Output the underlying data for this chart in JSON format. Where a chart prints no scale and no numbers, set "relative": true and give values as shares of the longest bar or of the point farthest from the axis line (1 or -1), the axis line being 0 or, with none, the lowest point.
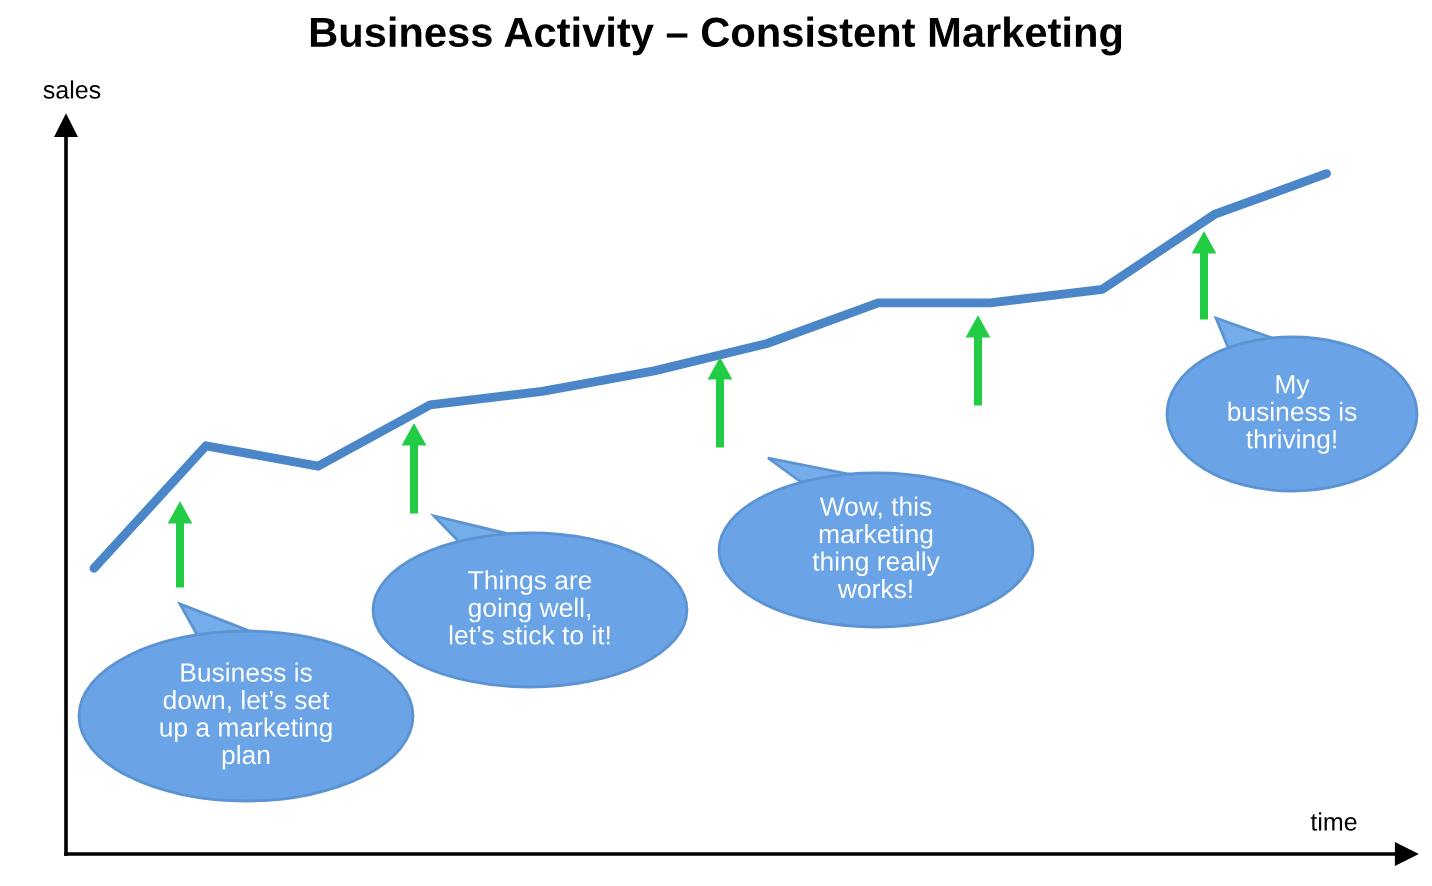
{
  "chart_data": {
    "type": "line",
    "title": "Business Activity – Consistent Marketing",
    "xlabel": "time",
    "ylabel": "sales",
    "categories": [
      null,
      null,
      null,
      null,
      null,
      null,
      null,
      null,
      null,
      null,
      null,
      null
    ],
    "series": [
      {
        "color": "#4a86c8",
        "values": [
          0.42,
          0.6,
          0.57,
          0.66,
          0.68,
          0.71,
          0.75,
          0.81,
          0.81,
          0.83,
          0.94,
          1.0
        ]
      }
    ],
    "relative": true,
    "marker": "none",
    "line_style": "solid",
    "annotations": [
      "Business is\ndown, let’s set\nup a marketing\nplan",
      "Things are\ngoing well,\nlet’s stick to it!",
      "Wow, this\nmarketing\nthing really\nworks!",
      "My\nbusiness is\nthriving!"
    ]
  }
}
